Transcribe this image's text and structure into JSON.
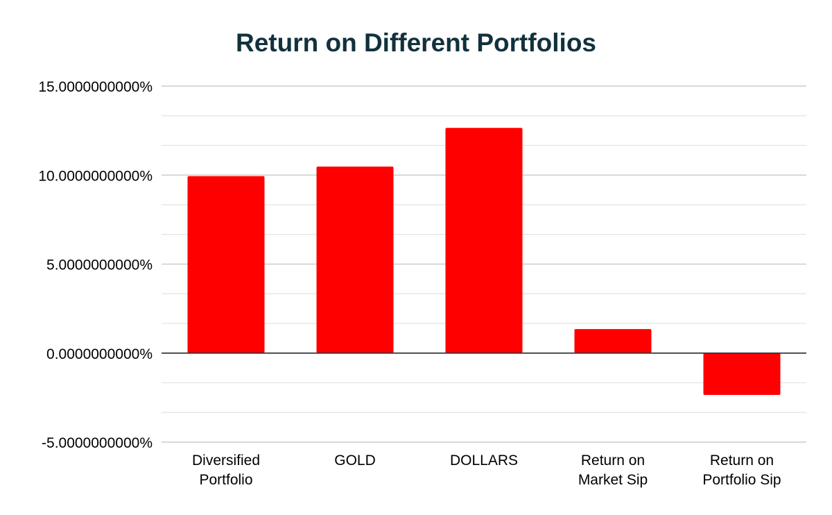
{
  "chart_data": {
    "type": "bar",
    "title": "Return on Different Portfolios",
    "categories": [
      [
        "Diversified",
        "Portfolio"
      ],
      [
        "GOLD"
      ],
      [
        "DOLLARS"
      ],
      [
        "Return on",
        "Market Sip"
      ],
      [
        "Return on",
        "Portfolio Sip"
      ]
    ],
    "series": [
      {
        "values": [
          9.94,
          10.48,
          12.65,
          1.35,
          -2.35
        ]
      }
    ],
    "ylim": [
      -5,
      15
    ],
    "yticks": [
      15,
      10,
      5,
      0,
      -5
    ],
    "ytick_labels": [
      "15.0000000000%",
      "10.0000000000%",
      "5.0000000000%",
      "0.0000000000%",
      "-5.0000000000%"
    ],
    "minor_grid_step": 1.6667,
    "grid": true,
    "legend": "none",
    "xlabel": "",
    "ylabel": ""
  },
  "colors": {
    "bar": "#ff0000",
    "title": "#12313d",
    "grid": "#cccccc",
    "minor_grid": "#e3e3e3",
    "zero_line": "#333333"
  }
}
